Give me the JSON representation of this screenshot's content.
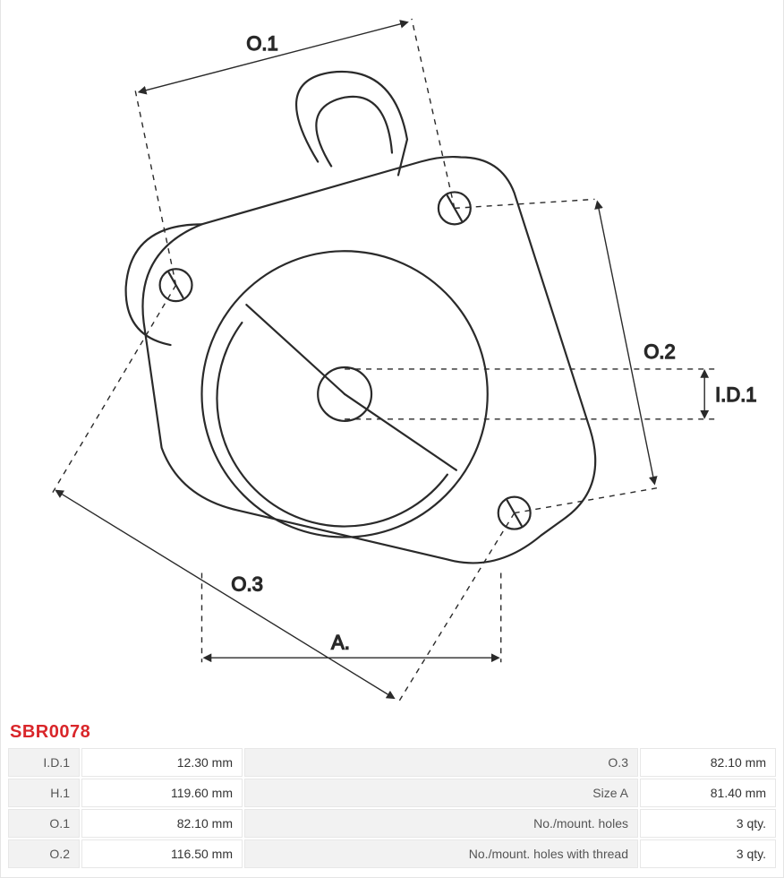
{
  "part_number": "SBR0078",
  "diagram": {
    "labels": {
      "O1": "O.1",
      "O2": "O.2",
      "O3": "O.3",
      "A": "A.",
      "ID1": "I.D.1"
    },
    "colors": {
      "stroke": "#2a2a2a",
      "dim_line": "#2a2a2a",
      "text": "#222222",
      "bg": "#ffffff"
    },
    "line_width_part": 2.2,
    "line_width_dim": 1.4
  },
  "specs": {
    "rows": [
      {
        "l1": "I.D.1",
        "v1": "12.30 mm",
        "l2": "O.3",
        "v2": "82.10 mm"
      },
      {
        "l1": "H.1",
        "v1": "119.60 mm",
        "l2": "Size A",
        "v2": "81.40 mm"
      },
      {
        "l1": "O.1",
        "v1": "82.10 mm",
        "l2": "No./mount. holes",
        "v2": "3 qty."
      },
      {
        "l1": "O.2",
        "v1": "116.50 mm",
        "l2": "No./mount. holes with thread",
        "v2": "3 qty."
      }
    ]
  }
}
